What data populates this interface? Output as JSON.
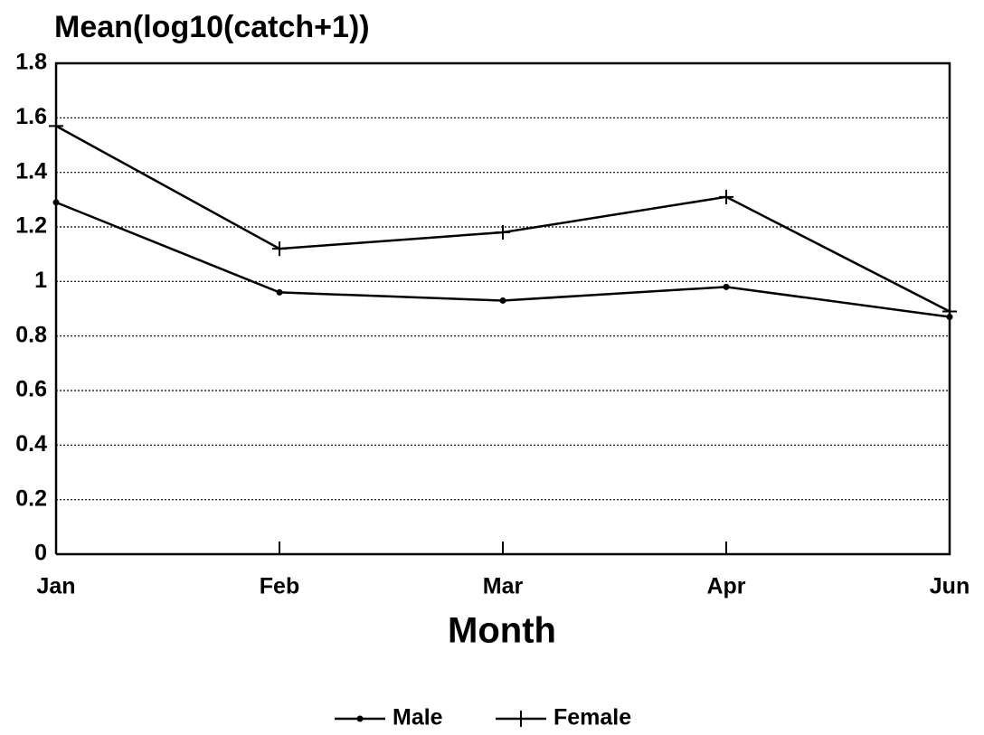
{
  "chart_data": {
    "type": "line",
    "title": "Mean(log10(catch+1))",
    "x_label": "Month",
    "categories": [
      "Jan",
      "Feb",
      "Mar",
      "Apr",
      "Jun"
    ],
    "series": [
      {
        "name": "Male",
        "color": "#000000",
        "marker": "dot",
        "values": [
          1.29,
          0.96,
          0.93,
          0.98,
          0.87
        ]
      },
      {
        "name": "Female",
        "color": "#000000",
        "marker": "plus",
        "values": [
          1.57,
          1.12,
          1.18,
          1.31,
          0.89
        ]
      }
    ],
    "ylim": [
      0,
      1.8
    ],
    "yticks": [
      0,
      0.2,
      0.4,
      0.6,
      0.8,
      1,
      1.2,
      1.4,
      1.6,
      1.8
    ],
    "grid": true,
    "legend": "bottom"
  }
}
